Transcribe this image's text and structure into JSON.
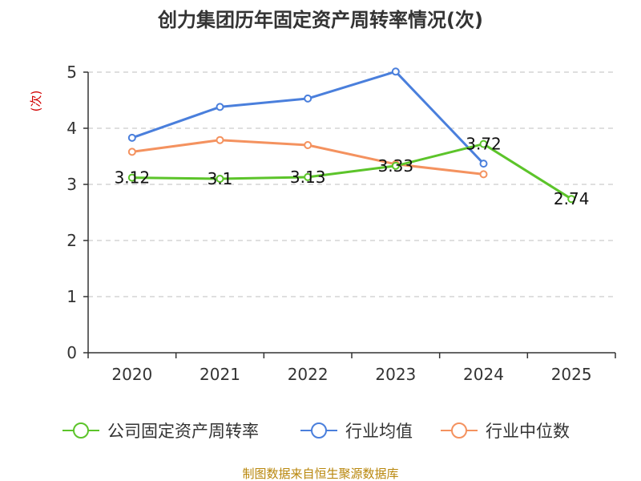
{
  "chart_data": {
    "type": "line",
    "title": "创力集团历年固定资产周转率情况(次)",
    "ylabel": "(次)",
    "xlabel": "",
    "categories": [
      "2020",
      "2021",
      "2022",
      "2023",
      "2024",
      "2025"
    ],
    "ylim": [
      0,
      5
    ],
    "yticks": [
      "0",
      "1",
      "2",
      "3",
      "4",
      "5"
    ],
    "grid": true,
    "legend_position": "bottom",
    "series": [
      {
        "name": "公司固定资产周转率",
        "color": "#5cc42a",
        "values": [
          3.12,
          3.1,
          3.13,
          3.33,
          3.72,
          2.74
        ],
        "labels": [
          "3.12",
          "3.1",
          "3.13",
          "3.33",
          "3.72",
          "2.74"
        ]
      },
      {
        "name": "行业均值",
        "color": "#4a7fdc",
        "values": [
          3.83,
          4.38,
          4.53,
          5.01,
          3.37,
          null
        ]
      },
      {
        "name": "行业中位数",
        "color": "#f4925f",
        "values": [
          3.58,
          3.79,
          3.7,
          3.36,
          3.18,
          null
        ]
      }
    ],
    "source": "制图数据来自恒生聚源数据库"
  }
}
